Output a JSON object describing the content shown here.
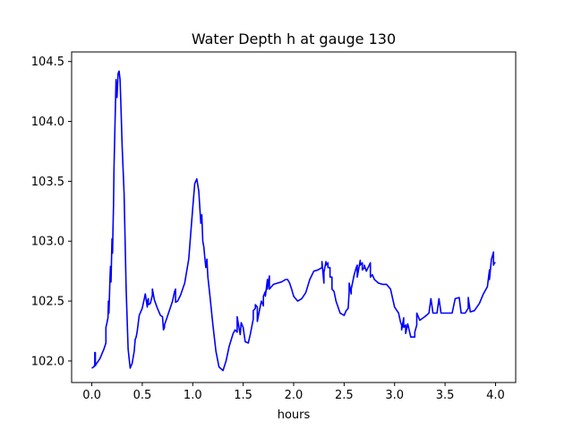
{
  "chart_data": {
    "type": "line",
    "title": "Water Depth h at gauge 130",
    "xlabel": "hours",
    "ylabel": "",
    "xlim": [
      -0.2,
      4.2
    ],
    "ylim": [
      101.82,
      104.58
    ],
    "xticks": [
      0.0,
      0.5,
      1.0,
      1.5,
      2.0,
      2.5,
      3.0,
      3.5,
      4.0
    ],
    "xtick_labels": [
      "0.0",
      "0.5",
      "1.0",
      "1.5",
      "2.0",
      "2.5",
      "3.0",
      "3.5",
      "4.0"
    ],
    "yticks": [
      102.0,
      102.5,
      103.0,
      103.5,
      104.0,
      104.5
    ],
    "ytick_labels": [
      "102.0",
      "102.5",
      "103.0",
      "103.5",
      "104.0",
      "104.5"
    ],
    "grid": false,
    "legend": "none",
    "series": [
      {
        "color": "#0000ff",
        "x": [
          0.0,
          0.02,
          0.03,
          0.03,
          0.035,
          0.035,
          0.04,
          0.08,
          0.12,
          0.14,
          0.14,
          0.15,
          0.16,
          0.165,
          0.17,
          0.18,
          0.185,
          0.19,
          0.2,
          0.205,
          0.21,
          0.215,
          0.22,
          0.24,
          0.25,
          0.26,
          0.27,
          0.28,
          0.29,
          0.3,
          0.32,
          0.34,
          0.36,
          0.38,
          0.4,
          0.42,
          0.43,
          0.44,
          0.45,
          0.47,
          0.5,
          0.53,
          0.55,
          0.55,
          0.56,
          0.56,
          0.58,
          0.6,
          0.6,
          0.62,
          0.65,
          0.68,
          0.7,
          0.71,
          0.72,
          0.72,
          0.74,
          0.76,
          0.78,
          0.8,
          0.82,
          0.83,
          0.83,
          0.85,
          0.88,
          0.92,
          0.96,
          1.0,
          1.02,
          1.04,
          1.06,
          1.08,
          1.09,
          1.1,
          1.11,
          1.12,
          1.13,
          1.14,
          1.15,
          1.17,
          1.2,
          1.23,
          1.26,
          1.3,
          1.33,
          1.36,
          1.4,
          1.42,
          1.44,
          1.44,
          1.46,
          1.47,
          1.48,
          1.5,
          1.52,
          1.55,
          1.57,
          1.6,
          1.6,
          1.62,
          1.62,
          1.64,
          1.64,
          1.66,
          1.68,
          1.7,
          1.7,
          1.72,
          1.72,
          1.74,
          1.74,
          1.76,
          1.76,
          1.78,
          1.8,
          1.84,
          1.88,
          1.92,
          1.94,
          1.96,
          1.98,
          2.0,
          2.04,
          2.08,
          2.12,
          2.16,
          2.2,
          2.24,
          2.28,
          2.28,
          2.3,
          2.3,
          2.32,
          2.32,
          2.34,
          2.34,
          2.36,
          2.36,
          2.38,
          2.38,
          2.4,
          2.42,
          2.46,
          2.5,
          2.52,
          2.54,
          2.55,
          2.55,
          2.57,
          2.57,
          2.6,
          2.62,
          2.63,
          2.63,
          2.66,
          2.66,
          2.68,
          2.68,
          2.7,
          2.7,
          2.72,
          2.76,
          2.76,
          2.78,
          2.8,
          2.84,
          2.88,
          2.92,
          2.96,
          3.0,
          3.04,
          3.06,
          3.07,
          3.07,
          3.09,
          3.09,
          3.11,
          3.11,
          3.13,
          3.16,
          3.2,
          3.2,
          3.22,
          3.22,
          3.25,
          3.3,
          3.34,
          3.34,
          3.36,
          3.38,
          3.42,
          3.42,
          3.44,
          3.46,
          3.5,
          3.54,
          3.56,
          3.57,
          3.6,
          3.64,
          3.64,
          3.66,
          3.7,
          3.73,
          3.73,
          3.75,
          3.79,
          3.84,
          3.88,
          3.92,
          3.94,
          3.94,
          3.96,
          3.97,
          3.98,
          3.98,
          3.99,
          4.0
        ],
        "y": [
          101.94,
          101.95,
          101.97,
          102.07,
          102.07,
          101.96,
          101.97,
          102.02,
          102.1,
          102.15,
          102.28,
          102.32,
          102.36,
          102.5,
          102.4,
          102.68,
          102.79,
          102.66,
          103.02,
          102.9,
          103.1,
          103.3,
          103.6,
          104.35,
          104.2,
          104.4,
          104.42,
          104.35,
          104.1,
          103.8,
          103.4,
          102.6,
          102.1,
          101.94,
          101.98,
          102.08,
          102.18,
          102.2,
          102.25,
          102.38,
          102.44,
          102.56,
          102.45,
          102.5,
          102.52,
          102.47,
          102.48,
          102.55,
          102.6,
          102.51,
          102.44,
          102.38,
          102.37,
          102.26,
          102.28,
          102.3,
          102.35,
          102.4,
          102.45,
          102.5,
          102.58,
          102.6,
          102.49,
          102.5,
          102.55,
          102.65,
          102.85,
          103.28,
          103.48,
          103.52,
          103.42,
          103.15,
          103.22,
          103.0,
          102.95,
          102.86,
          102.78,
          102.85,
          102.7,
          102.55,
          102.3,
          102.08,
          101.95,
          101.92,
          102.0,
          102.12,
          102.23,
          102.26,
          102.24,
          102.37,
          102.27,
          102.22,
          102.32,
          102.28,
          102.16,
          102.15,
          102.22,
          102.35,
          102.42,
          102.44,
          102.47,
          102.45,
          102.33,
          102.42,
          102.5,
          102.46,
          102.54,
          102.58,
          102.54,
          102.68,
          102.6,
          102.71,
          102.6,
          102.62,
          102.64,
          102.65,
          102.66,
          102.68,
          102.68,
          102.65,
          102.6,
          102.54,
          102.5,
          102.52,
          102.57,
          102.68,
          102.75,
          102.76,
          102.78,
          102.83,
          102.65,
          102.74,
          102.83,
          102.8,
          102.82,
          102.78,
          102.78,
          102.7,
          102.7,
          102.6,
          102.58,
          102.5,
          102.4,
          102.38,
          102.42,
          102.44,
          102.58,
          102.65,
          102.56,
          102.6,
          102.72,
          102.78,
          102.8,
          102.7,
          102.84,
          102.8,
          102.82,
          102.76,
          102.78,
          102.8,
          102.75,
          102.82,
          102.7,
          102.72,
          102.68,
          102.65,
          102.64,
          102.64,
          102.6,
          102.45,
          102.4,
          102.32,
          102.3,
          102.26,
          102.36,
          102.28,
          102.3,
          102.23,
          102.31,
          102.2,
          102.2,
          102.24,
          102.3,
          102.4,
          102.34,
          102.37,
          102.4,
          102.4,
          102.52,
          102.4,
          102.4,
          102.4,
          102.52,
          102.4,
          102.4,
          102.4,
          102.4,
          102.4,
          102.52,
          102.53,
          102.53,
          102.4,
          102.4,
          102.44,
          102.53,
          102.41,
          102.42,
          102.48,
          102.56,
          102.62,
          102.76,
          102.68,
          102.85,
          102.88,
          102.91,
          102.8,
          102.82,
          102.82
        ]
      }
    ]
  }
}
